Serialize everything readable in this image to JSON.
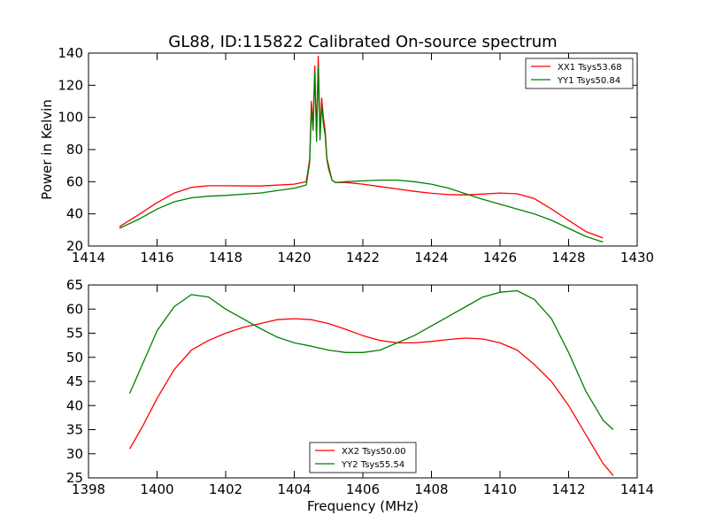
{
  "figure": {
    "title": "GL88, ID:115822 Calibrated On-source spectrum",
    "ylabel": "Power in Kelvin",
    "xlabel": "Frequency (MHz)"
  },
  "colors": {
    "red": "#ff0000",
    "green": "#008000",
    "axis": "#000000",
    "background": "#ffffff"
  },
  "chart_data": [
    {
      "type": "line",
      "title": "GL88, ID:115822 Calibrated On-source spectrum",
      "xlabel": "",
      "ylabel": "Power in Kelvin",
      "xlim": [
        1414,
        1430
      ],
      "ylim": [
        20,
        140
      ],
      "xticks": [
        1414,
        1416,
        1418,
        1420,
        1422,
        1424,
        1426,
        1428,
        1430
      ],
      "yticks": [
        20,
        40,
        60,
        80,
        100,
        120,
        140
      ],
      "grid": false,
      "legend": "top-right",
      "series": [
        {
          "name": "XX1 Tsys53.68",
          "color": "#ff0000",
          "x": [
            1414.9,
            1415.5,
            1416.0,
            1416.5,
            1417.0,
            1417.5,
            1418.0,
            1419.0,
            1420.0,
            1420.35,
            1420.45,
            1420.5,
            1420.55,
            1420.6,
            1420.65,
            1420.7,
            1420.75,
            1420.8,
            1420.85,
            1420.9,
            1420.95,
            1421.0,
            1421.1,
            1421.2,
            1421.5,
            1422.0,
            1422.5,
            1423.0,
            1423.5,
            1424.0,
            1424.5,
            1425.0,
            1425.5,
            1426.0,
            1426.5,
            1427.0,
            1427.5,
            1428.0,
            1428.5,
            1429.0
          ],
          "y": [
            32,
            40,
            47,
            53,
            56.5,
            57.5,
            57.5,
            57.3,
            58.5,
            60,
            74,
            110,
            95,
            132,
            88,
            138,
            90,
            112,
            100,
            92,
            75,
            70,
            61,
            59.5,
            59.5,
            58.5,
            57,
            55.5,
            54,
            52.8,
            52,
            51.8,
            52.3,
            53,
            52.5,
            49.5,
            43,
            36,
            29,
            25
          ]
        },
        {
          "name": "YY1 Tsys50.84",
          "color": "#008000",
          "x": [
            1414.9,
            1415.5,
            1416.0,
            1416.5,
            1417.0,
            1417.5,
            1418.0,
            1419.0,
            1420.0,
            1420.35,
            1420.45,
            1420.5,
            1420.55,
            1420.6,
            1420.65,
            1420.7,
            1420.75,
            1420.8,
            1420.85,
            1420.9,
            1420.95,
            1421.0,
            1421.1,
            1421.2,
            1421.5,
            1422.0,
            1422.5,
            1423.0,
            1423.5,
            1424.0,
            1424.5,
            1425.0,
            1425.5,
            1426.0,
            1426.5,
            1427.0,
            1427.5,
            1428.0,
            1428.5,
            1429.0
          ],
          "y": [
            31,
            37,
            43,
            47.5,
            50,
            51,
            51.5,
            53,
            56,
            58,
            72,
            105,
            92,
            128,
            85,
            132,
            86,
            108,
            96,
            89,
            74,
            68,
            61,
            59.5,
            60,
            60.5,
            61,
            61,
            60,
            58.5,
            56,
            52.5,
            49,
            46,
            43,
            40,
            36,
            31,
            26,
            22.5
          ]
        }
      ]
    },
    {
      "type": "line",
      "title": "",
      "xlabel": "Frequency (MHz)",
      "ylabel": "",
      "xlim": [
        1398,
        1414
      ],
      "ylim": [
        25,
        65
      ],
      "xticks": [
        1398,
        1400,
        1402,
        1404,
        1406,
        1408,
        1410,
        1412,
        1414
      ],
      "yticks": [
        25,
        30,
        35,
        40,
        45,
        50,
        55,
        60,
        65
      ],
      "grid": false,
      "legend": "bottom-center",
      "series": [
        {
          "name": "XX2 Tsys50.00",
          "color": "#ff0000",
          "x": [
            1399.2,
            1399.6,
            1400.0,
            1400.5,
            1401.0,
            1401.5,
            1402.0,
            1402.5,
            1403.0,
            1403.5,
            1404.0,
            1404.5,
            1405.0,
            1405.5,
            1406.0,
            1406.5,
            1407.0,
            1407.5,
            1408.0,
            1408.5,
            1409.0,
            1409.5,
            1410.0,
            1410.5,
            1411.0,
            1411.5,
            1412.0,
            1412.5,
            1413.0,
            1413.3
          ],
          "y": [
            31,
            36,
            41.5,
            47.5,
            51.5,
            53.5,
            55,
            56.2,
            57,
            57.8,
            58,
            57.8,
            57,
            55.8,
            54.5,
            53.5,
            53,
            53,
            53.3,
            53.7,
            54,
            53.8,
            53,
            51.5,
            48.5,
            45,
            40,
            34,
            28,
            25.5
          ]
        },
        {
          "name": "YY2 Tsys55.54",
          "color": "#008000",
          "x": [
            1399.2,
            1399.6,
            1400.0,
            1400.5,
            1401.0,
            1401.5,
            1402.0,
            1402.5,
            1403.0,
            1403.5,
            1404.0,
            1404.5,
            1405.0,
            1405.5,
            1406.0,
            1406.5,
            1407.0,
            1407.5,
            1408.0,
            1408.5,
            1409.0,
            1409.5,
            1410.0,
            1410.5,
            1411.0,
            1411.5,
            1412.0,
            1412.5,
            1413.0,
            1413.3
          ],
          "y": [
            42.5,
            49,
            55.5,
            60.5,
            63,
            62.5,
            60,
            58,
            56,
            54.2,
            53,
            52.3,
            51.5,
            51,
            51,
            51.5,
            53,
            54.5,
            56.5,
            58.5,
            60.5,
            62.5,
            63.5,
            63.8,
            62,
            58,
            51,
            43,
            37,
            35
          ]
        }
      ]
    }
  ]
}
